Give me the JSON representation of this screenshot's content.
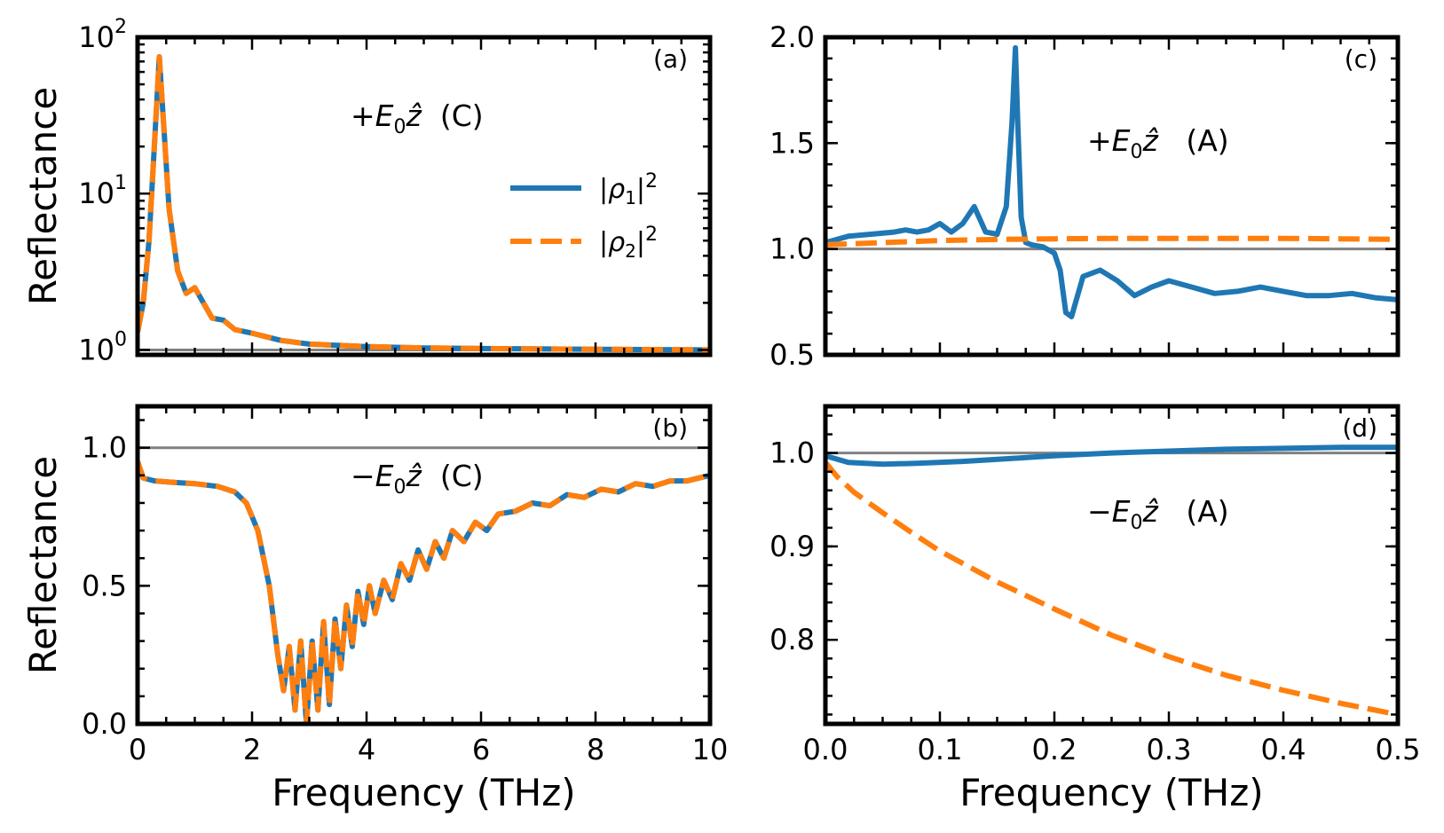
{
  "colors": {
    "rho1": "#1f77b4",
    "rho2": "#ff7f0e",
    "ref_line": "#808080",
    "axes": "#000000"
  },
  "legend": {
    "entries": [
      "|ρ1|²",
      "|ρ2|²"
    ],
    "placement": "panel-a right"
  },
  "chart_data": [
    {
      "panel": "(a)",
      "type": "line",
      "annotation": "+E0ẑ  (C)",
      "xlabel": "",
      "ylabel": "Reflectance",
      "xlim": [
        0,
        10
      ],
      "ylim": [
        0.93,
        100
      ],
      "yscale": "log",
      "yticks": [
        "10^0",
        "10^1",
        "10^2"
      ],
      "reference_line": 1.0,
      "series": [
        {
          "name": "|ρ1|²",
          "style": "solid",
          "x": [
            0,
            0.1,
            0.2,
            0.3,
            0.38,
            0.45,
            0.55,
            0.7,
            0.85,
            1.0,
            1.15,
            1.3,
            1.5,
            1.7,
            2.0,
            2.5,
            3.0,
            4.0,
            5.0,
            6.0,
            8.0,
            10.0
          ],
          "y": [
            1.3,
            2.0,
            5.0,
            22.0,
            75.0,
            30.0,
            8.0,
            3.2,
            2.3,
            2.5,
            2.0,
            1.6,
            1.55,
            1.35,
            1.28,
            1.15,
            1.09,
            1.05,
            1.03,
            1.02,
            1.01,
            1.0
          ]
        },
        {
          "name": "|ρ2|²",
          "style": "dashed",
          "x": [
            0,
            0.1,
            0.2,
            0.3,
            0.38,
            0.45,
            0.55,
            0.7,
            0.85,
            1.0,
            1.15,
            1.3,
            1.5,
            1.7,
            2.0,
            2.5,
            3.0,
            4.0,
            5.0,
            6.0,
            8.0,
            10.0
          ],
          "y": [
            1.3,
            2.0,
            5.0,
            22.0,
            75.0,
            30.0,
            8.0,
            3.2,
            2.3,
            2.5,
            2.0,
            1.6,
            1.55,
            1.35,
            1.28,
            1.15,
            1.09,
            1.05,
            1.03,
            1.02,
            1.01,
            1.0
          ]
        }
      ]
    },
    {
      "panel": "(b)",
      "type": "line",
      "annotation": "−E0ẑ  (C)",
      "xlabel": "Frequency (THz)",
      "ylabel": "Reflectance",
      "xlim": [
        0,
        10
      ],
      "ylim": [
        0,
        1.15
      ],
      "xticks": [
        "0",
        "2",
        "4",
        "6",
        "8",
        "10"
      ],
      "yticks": [
        "0.0",
        "0.5",
        "1.0"
      ],
      "reference_line": 1.0,
      "series": [
        {
          "name": "|ρ1|²",
          "style": "solid",
          "x": [
            0,
            0.1,
            0.3,
            0.6,
            1.0,
            1.4,
            1.7,
            1.9,
            2.1,
            2.3,
            2.45,
            2.55,
            2.65,
            2.75,
            2.85,
            2.95,
            3.05,
            3.15,
            3.25,
            3.35,
            3.45,
            3.55,
            3.65,
            3.75,
            3.85,
            3.95,
            4.05,
            4.15,
            4.3,
            4.45,
            4.6,
            4.75,
            4.9,
            5.05,
            5.2,
            5.35,
            5.5,
            5.7,
            5.9,
            6.1,
            6.3,
            6.6,
            6.9,
            7.2,
            7.5,
            7.8,
            8.1,
            8.4,
            8.7,
            9.0,
            9.3,
            9.6,
            10.0
          ],
          "y": [
            0.95,
            0.89,
            0.88,
            0.875,
            0.87,
            0.86,
            0.84,
            0.8,
            0.7,
            0.5,
            0.25,
            0.12,
            0.28,
            0.05,
            0.3,
            0.0,
            0.3,
            0.05,
            0.37,
            0.07,
            0.38,
            0.2,
            0.43,
            0.28,
            0.48,
            0.36,
            0.5,
            0.4,
            0.52,
            0.45,
            0.58,
            0.52,
            0.63,
            0.56,
            0.66,
            0.6,
            0.7,
            0.66,
            0.73,
            0.7,
            0.76,
            0.77,
            0.8,
            0.79,
            0.83,
            0.82,
            0.85,
            0.84,
            0.87,
            0.86,
            0.88,
            0.88,
            0.9
          ]
        },
        {
          "name": "|ρ2|²",
          "style": "dashed",
          "x": [
            0,
            0.1,
            0.3,
            0.6,
            1.0,
            1.4,
            1.7,
            1.9,
            2.1,
            2.3,
            2.45,
            2.55,
            2.65,
            2.75,
            2.85,
            2.95,
            3.05,
            3.15,
            3.25,
            3.35,
            3.45,
            3.55,
            3.65,
            3.75,
            3.85,
            3.95,
            4.05,
            4.15,
            4.3,
            4.45,
            4.6,
            4.75,
            4.9,
            5.05,
            5.2,
            5.35,
            5.5,
            5.7,
            5.9,
            6.1,
            6.3,
            6.6,
            6.9,
            7.2,
            7.5,
            7.8,
            8.1,
            8.4,
            8.7,
            9.0,
            9.3,
            9.6,
            10.0
          ],
          "y": [
            0.95,
            0.89,
            0.88,
            0.875,
            0.87,
            0.86,
            0.84,
            0.8,
            0.7,
            0.5,
            0.25,
            0.12,
            0.28,
            0.05,
            0.3,
            0.0,
            0.3,
            0.05,
            0.37,
            0.07,
            0.38,
            0.2,
            0.43,
            0.28,
            0.48,
            0.36,
            0.5,
            0.4,
            0.52,
            0.45,
            0.58,
            0.52,
            0.63,
            0.56,
            0.66,
            0.6,
            0.7,
            0.66,
            0.73,
            0.7,
            0.76,
            0.77,
            0.8,
            0.79,
            0.83,
            0.82,
            0.85,
            0.84,
            0.87,
            0.86,
            0.88,
            0.88,
            0.9
          ]
        }
      ]
    },
    {
      "panel": "(c)",
      "type": "line",
      "annotation": "+E0ẑ   (A)",
      "xlabel": "",
      "ylabel": "",
      "xlim": [
        0,
        0.5
      ],
      "ylim": [
        0.5,
        2.0
      ],
      "yticks": [
        "0.5",
        "1.0",
        "1.5",
        "2.0"
      ],
      "reference_line": 1.0,
      "series": [
        {
          "name": "|ρ1|²",
          "style": "solid",
          "x": [
            0,
            0.02,
            0.04,
            0.06,
            0.07,
            0.08,
            0.09,
            0.1,
            0.11,
            0.12,
            0.13,
            0.14,
            0.15,
            0.158,
            0.163,
            0.166,
            0.168,
            0.171,
            0.175,
            0.18,
            0.19,
            0.2,
            0.205,
            0.21,
            0.215,
            0.225,
            0.24,
            0.255,
            0.27,
            0.285,
            0.3,
            0.32,
            0.34,
            0.36,
            0.38,
            0.4,
            0.42,
            0.44,
            0.46,
            0.48,
            0.5
          ],
          "y": [
            1.03,
            1.06,
            1.07,
            1.08,
            1.09,
            1.08,
            1.09,
            1.12,
            1.08,
            1.12,
            1.2,
            1.08,
            1.07,
            1.2,
            1.6,
            1.95,
            1.6,
            1.15,
            1.03,
            1.02,
            1.01,
            0.98,
            0.9,
            0.7,
            0.68,
            0.87,
            0.9,
            0.85,
            0.78,
            0.82,
            0.85,
            0.82,
            0.79,
            0.8,
            0.82,
            0.8,
            0.78,
            0.78,
            0.79,
            0.77,
            0.76
          ]
        },
        {
          "name": "|ρ2|²",
          "style": "dashed",
          "x": [
            0,
            0.05,
            0.1,
            0.15,
            0.2,
            0.25,
            0.3,
            0.35,
            0.4,
            0.45,
            0.5
          ],
          "y": [
            1.02,
            1.03,
            1.04,
            1.045,
            1.048,
            1.05,
            1.05,
            1.05,
            1.05,
            1.048,
            1.045
          ]
        }
      ]
    },
    {
      "panel": "(d)",
      "type": "line",
      "annotation": "−E0ẑ   (A)",
      "xlabel": "Frequency (THz)",
      "ylabel": "",
      "xlim": [
        0,
        0.5
      ],
      "ylim": [
        0.71,
        1.05
      ],
      "xticks": [
        "0.0",
        "0.1",
        "0.2",
        "0.3",
        "0.4",
        "0.5"
      ],
      "yticks": [
        "0.8",
        "0.9",
        "1.0"
      ],
      "reference_line": 1.0,
      "series": [
        {
          "name": "|ρ1|²",
          "style": "solid",
          "x": [
            0,
            0.02,
            0.05,
            0.08,
            0.12,
            0.16,
            0.2,
            0.25,
            0.3,
            0.35,
            0.4,
            0.45,
            0.5
          ],
          "y": [
            0.997,
            0.99,
            0.988,
            0.989,
            0.991,
            0.994,
            0.997,
            1.0,
            1.002,
            1.004,
            1.005,
            1.006,
            1.006
          ]
        },
        {
          "name": "|ρ2|²",
          "style": "dashed",
          "x": [
            0,
            0.01,
            0.025,
            0.05,
            0.075,
            0.1,
            0.15,
            0.2,
            0.25,
            0.3,
            0.35,
            0.4,
            0.45,
            0.5
          ],
          "y": [
            0.99,
            0.975,
            0.958,
            0.936,
            0.915,
            0.895,
            0.862,
            0.833,
            0.805,
            0.782,
            0.762,
            0.746,
            0.732,
            0.72
          ]
        }
      ]
    }
  ]
}
